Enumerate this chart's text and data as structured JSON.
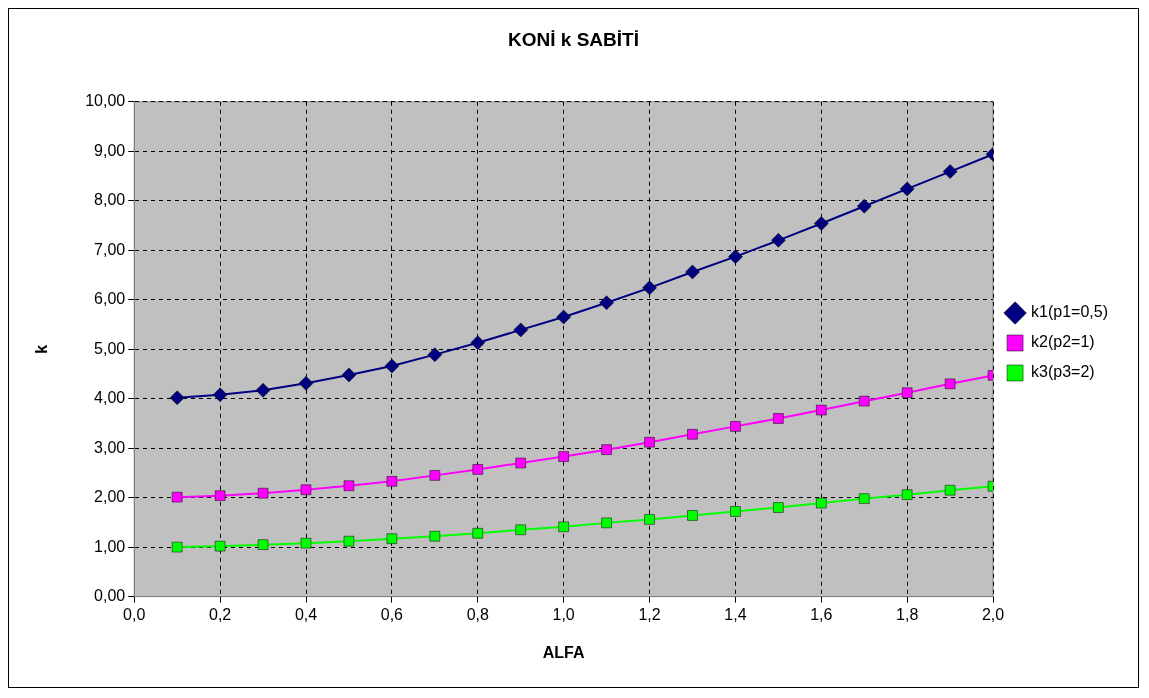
{
  "chart_data": {
    "type": "line",
    "title": "KONİ k SABİTİ",
    "xlabel": "ALFA",
    "ylabel": "k",
    "x": [
      0.1,
      0.2,
      0.3,
      0.4,
      0.5,
      0.6,
      0.7,
      0.8,
      0.9,
      1.0,
      1.1,
      1.2,
      1.3,
      1.4,
      1.5,
      1.6,
      1.7,
      1.8,
      1.9,
      2.0
    ],
    "series": [
      {
        "name": "k1(p1=0,5)",
        "color": "#000080",
        "marker": "diamond",
        "values": [
          4.02,
          4.08,
          4.17,
          4.31,
          4.48,
          4.66,
          4.89,
          5.13,
          5.39,
          5.65,
          5.94,
          6.24,
          6.56,
          6.87,
          7.2,
          7.54,
          7.89,
          8.24,
          8.59,
          8.94
        ]
      },
      {
        "name": "k2(p2=1)",
        "color": "#ff00ff",
        "marker": "square",
        "values": [
          2.01,
          2.04,
          2.09,
          2.16,
          2.24,
          2.33,
          2.45,
          2.57,
          2.7,
          2.83,
          2.97,
          3.12,
          3.28,
          3.44,
          3.6,
          3.77,
          3.95,
          4.12,
          4.3,
          4.47
        ]
      },
      {
        "name": "k3(p3=2)",
        "color": "#00ff00",
        "marker": "square",
        "values": [
          1.0,
          1.02,
          1.05,
          1.08,
          1.12,
          1.17,
          1.22,
          1.28,
          1.35,
          1.41,
          1.49,
          1.56,
          1.64,
          1.72,
          1.8,
          1.89,
          1.98,
          2.06,
          2.15,
          2.23
        ]
      }
    ],
    "xlim": [
      0,
      2.0
    ],
    "xticks": [
      {
        "value": 0,
        "label": "0,0"
      },
      {
        "value": 0.2,
        "label": "0,2"
      },
      {
        "value": 0.4,
        "label": "0,4"
      },
      {
        "value": 0.6,
        "label": "0,6"
      },
      {
        "value": 0.8,
        "label": "0,8"
      },
      {
        "value": 1.0,
        "label": "1,0"
      },
      {
        "value": 1.2,
        "label": "1,2"
      },
      {
        "value": 1.4,
        "label": "1,4"
      },
      {
        "value": 1.6,
        "label": "1,6"
      },
      {
        "value": 1.8,
        "label": "1,8"
      },
      {
        "value": 2.0,
        "label": "2,0"
      }
    ],
    "ylim": [
      0,
      10
    ],
    "yticks": [
      {
        "value": 0,
        "label": "0,00"
      },
      {
        "value": 1,
        "label": "1,00"
      },
      {
        "value": 2,
        "label": "2,00"
      },
      {
        "value": 3,
        "label": "3,00"
      },
      {
        "value": 4,
        "label": "4,00"
      },
      {
        "value": 5,
        "label": "5,00"
      },
      {
        "value": 6,
        "label": "6,00"
      },
      {
        "value": 7,
        "label": "7,00"
      },
      {
        "value": 8,
        "label": "8,00"
      },
      {
        "value": 9,
        "label": "9,00"
      },
      {
        "value": 10,
        "label": "10,00"
      }
    ],
    "grid": true,
    "legend": "right",
    "line_style": "solid"
  }
}
